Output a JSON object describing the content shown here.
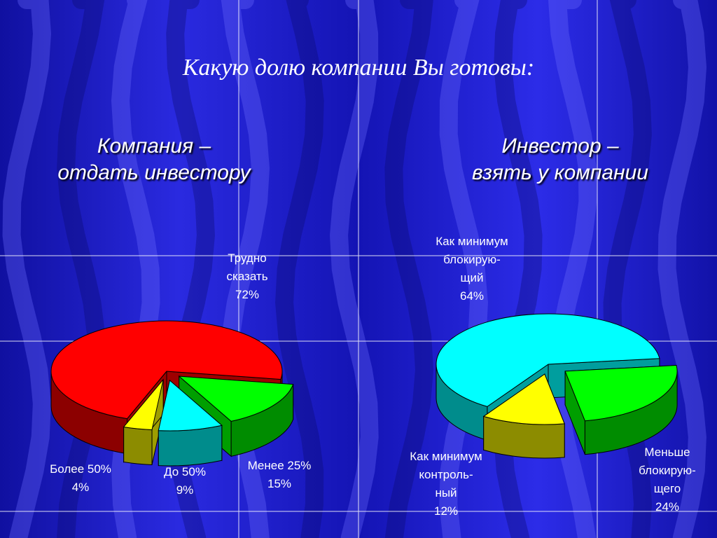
{
  "title": "Какую долю компании Вы готовы:",
  "colors": {
    "background": "#1c1cc8",
    "red": "#ff0000",
    "yellow": "#ffff00",
    "cyan": "#00ffff",
    "green": "#00ff00"
  },
  "chart_data": [
    {
      "type": "pie",
      "title_lines": [
        "Компания –",
        "отдать инвестору"
      ],
      "slices": [
        {
          "label_lines": [
            "Трудно",
            "сказать"
          ],
          "value": 72,
          "value_label": "72%",
          "color": "#ff0000"
        },
        {
          "label_lines": [
            "Менее 25%"
          ],
          "value": 15,
          "value_label": "15%",
          "color": "#00ff00"
        },
        {
          "label_lines": [
            "До 50%"
          ],
          "value": 9,
          "value_label": "9%",
          "color": "#00ffff"
        },
        {
          "label_lines": [
            "Более 50%"
          ],
          "value": 4,
          "value_label": "4%",
          "color": "#ffff00"
        }
      ]
    },
    {
      "type": "pie",
      "title_lines": [
        "Инвестор –",
        "взять у компании"
      ],
      "slices": [
        {
          "label_lines": [
            "Как минимум",
            "блокирую-",
            "щий"
          ],
          "value": 64,
          "value_label": "64%",
          "color": "#00ffff"
        },
        {
          "label_lines": [
            "Меньше",
            "блокирую-",
            "щего"
          ],
          "value": 24,
          "value_label": "24%",
          "color": "#00ff00"
        },
        {
          "label_lines": [
            "Как минимум",
            "контроль-",
            "ный"
          ],
          "value": 12,
          "value_label": "12%",
          "color": "#ffff00"
        }
      ]
    }
  ]
}
